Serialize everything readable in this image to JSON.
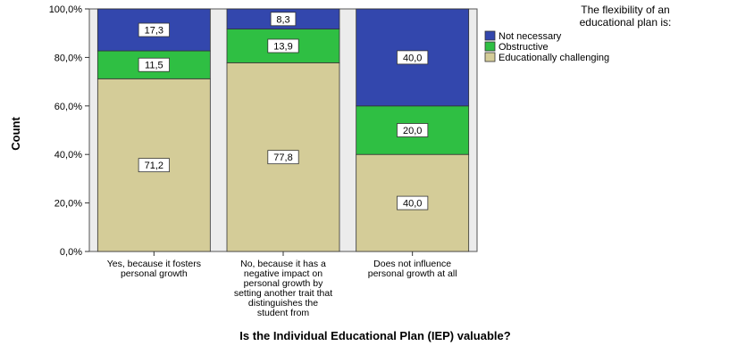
{
  "chart_data": {
    "type": "bar",
    "stacked": true,
    "categories": [
      [
        "Yes, because it fosters",
        "personal growth"
      ],
      [
        "No, because it has a",
        "negative impact on",
        "personal growth by",
        "setting another trait that",
        "distinguishes the",
        "student from"
      ],
      [
        "Does not influence",
        "personal growth at all"
      ]
    ],
    "series": [
      {
        "name": "Educationally challenging",
        "color": "#d4cc98",
        "values": [
          71.2,
          77.8,
          40.0
        ],
        "labels": [
          "71,2",
          "77,8",
          "40,0"
        ]
      },
      {
        "name": "Obstructive",
        "color": "#2fbf43",
        "values": [
          11.5,
          13.9,
          20.0
        ],
        "labels": [
          "11,5",
          "13,9",
          "20,0"
        ]
      },
      {
        "name": "Not necessary",
        "color": "#3347ad",
        "values": [
          17.3,
          8.3,
          40.0
        ],
        "labels": [
          "17,3",
          "8,3",
          "40,0"
        ]
      }
    ],
    "ylim": [
      0,
      100
    ],
    "yticks": [
      0,
      20,
      40,
      60,
      80,
      100
    ],
    "ytick_labels": [
      "0,0%",
      "20,0%",
      "40,0%",
      "60,0%",
      "80,0%",
      "100,0%"
    ],
    "ylabel": "Count",
    "xlabel": "Is the Individual Educational Plan (IEP) valuable?",
    "legend": {
      "title_lines": [
        "The flexibility of an",
        "educational plan is:"
      ],
      "order": [
        "Not necessary",
        "Obstructive",
        "Educationally challenging"
      ],
      "placement": "right"
    },
    "grid": false,
    "plot_background": "#ececec"
  }
}
